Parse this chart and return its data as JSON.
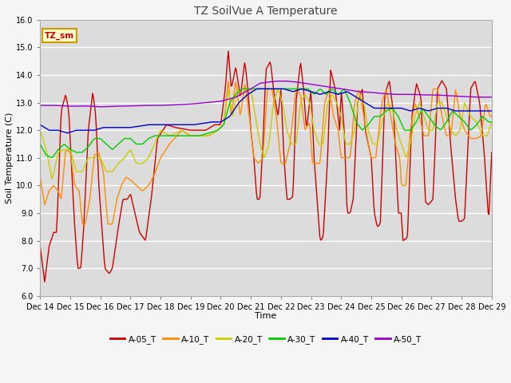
{
  "title": "TZ SoilVue A Temperature",
  "xlabel": "Time",
  "ylabel": "Soil Temperature (C)",
  "ylim": [
    6.0,
    16.0
  ],
  "yticks": [
    6.0,
    7.0,
    8.0,
    9.0,
    10.0,
    11.0,
    12.0,
    13.0,
    14.0,
    15.0,
    16.0
  ],
  "series_colors": {
    "A-05_T": "#cc0000",
    "A-10_T": "#ff8c00",
    "A-20_T": "#cccc00",
    "A-30_T": "#00cc00",
    "A-40_T": "#0000cc",
    "A-50_T": "#9900cc"
  },
  "plot_bg": "#dcdcdc",
  "fig_bg": "#f5f5f5",
  "legend_box_facecolor": "#ffffcc",
  "legend_box_edgecolor": "#cc9900",
  "legend_text": "TZ_sm",
  "legend_text_color": "#cc0000",
  "xtick_labels": [
    "Dec 14",
    "Dec 15",
    "Dec 16",
    "Dec 17",
    "Dec 18",
    "Dec 19",
    "Dec 20",
    "Dec 21",
    "Dec 22",
    "Dec 23",
    "Dec 24",
    "Dec 25",
    "Dec 26",
    "Dec 27",
    "Dec 28",
    "Dec 29"
  ]
}
